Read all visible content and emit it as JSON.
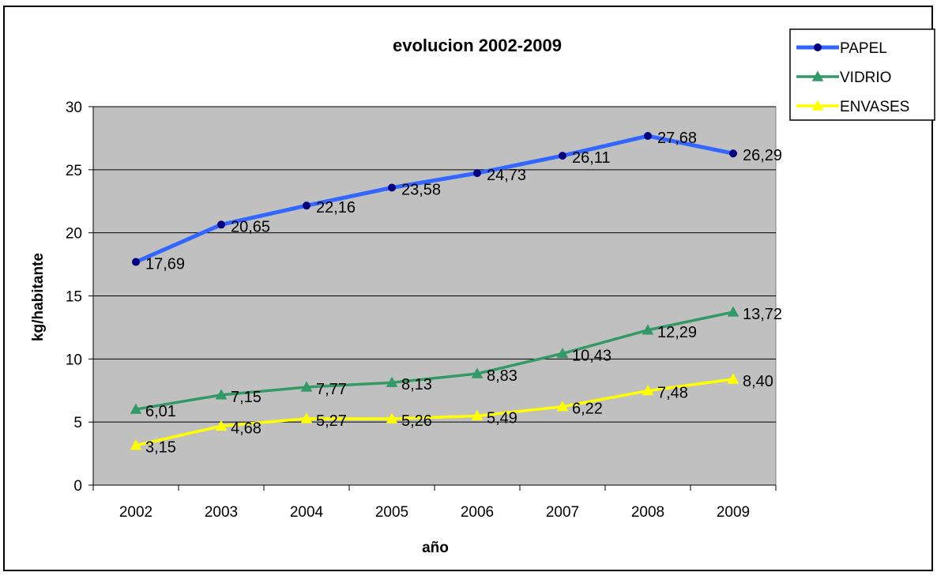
{
  "chart_data": {
    "type": "line",
    "title": "evolucion 2002-2009",
    "xlabel": "año",
    "ylabel": "kg/habitante",
    "categories": [
      "2002",
      "2003",
      "2004",
      "2005",
      "2006",
      "2007",
      "2008",
      "2009"
    ],
    "ylim": [
      0,
      30
    ],
    "yticks": [
      0,
      5,
      10,
      15,
      20,
      25,
      30
    ],
    "grid": true,
    "legend_position": "top-right",
    "plot_background": "#c0c0c0",
    "series": [
      {
        "name": "PAPEL",
        "color": "#3366ff",
        "marker_color": "#000080",
        "marker": "circle",
        "values": [
          17.69,
          20.65,
          22.16,
          23.58,
          24.73,
          26.11,
          27.68,
          26.29
        ],
        "labels": [
          "17,69",
          "20,65",
          "22,16",
          "23,58",
          "24,73",
          "26,11",
          "27,68",
          "26,29"
        ]
      },
      {
        "name": "VIDRIO",
        "color": "#339966",
        "marker_color": "#339966",
        "marker": "triangle",
        "values": [
          6.01,
          7.15,
          7.77,
          8.13,
          8.83,
          10.43,
          12.29,
          13.72
        ],
        "labels": [
          "6,01",
          "7,15",
          "7,77",
          "8,13",
          "8,83",
          "10,43",
          "12,29",
          "13,72"
        ]
      },
      {
        "name": "ENVASES",
        "color": "#ffff00",
        "marker_color": "#ffff00",
        "marker": "triangle",
        "values": [
          3.15,
          4.68,
          5.27,
          5.26,
          5.49,
          6.22,
          7.48,
          8.4
        ],
        "labels": [
          "3,15",
          "4,68",
          "5,27",
          "5,26",
          "5,49",
          "6,22",
          "7,48",
          "8,40"
        ]
      }
    ]
  }
}
